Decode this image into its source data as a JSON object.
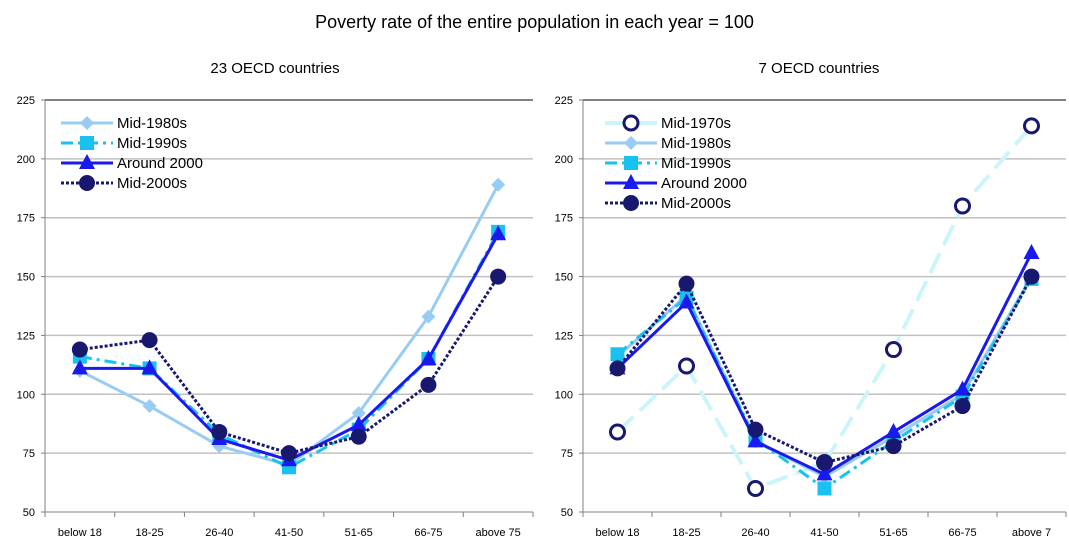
{
  "figure": {
    "title": "Poverty rate of the entire population in each year = 100"
  },
  "colors": {
    "mid1970s": "#ccf5fa",
    "mid1980s": "#99ccf2",
    "mid1990s": "#19c2ee",
    "around2000": "#1a1aee",
    "mid2000s": "#18186e",
    "grid": "#c0c0c0",
    "axis": "#808080"
  },
  "chart_data": [
    {
      "type": "line",
      "title": "23 OECD countries",
      "categories": [
        "below 18",
        "18-25",
        "26-40",
        "41-50",
        "51-65",
        "66-75",
        "above 75"
      ],
      "ylim": [
        50,
        225
      ],
      "yticks": [
        50,
        75,
        100,
        125,
        150,
        175,
        200,
        225
      ],
      "grid": true,
      "legend_position": "top-left",
      "series": [
        {
          "name": "Mid-1980s",
          "key": "mid1980s",
          "marker": "diamond",
          "dash": "solid",
          "values": [
            110,
            95,
            78,
            70,
            92,
            133,
            189
          ]
        },
        {
          "name": "Mid-1990s",
          "key": "mid1990s",
          "marker": "square",
          "dash": "dashdot",
          "values": [
            116,
            111,
            83,
            69,
            85,
            115,
            169
          ]
        },
        {
          "name": "Around 2000",
          "key": "around2000",
          "marker": "triangle",
          "dash": "solid",
          "values": [
            111,
            111,
            81,
            72,
            87,
            115,
            168
          ]
        },
        {
          "name": "Mid-2000s",
          "key": "mid2000s",
          "marker": "circle",
          "dash": "dotted",
          "values": [
            119,
            123,
            84,
            75,
            82,
            104,
            150
          ]
        }
      ]
    },
    {
      "type": "line",
      "title": "7 OECD countries",
      "categories": [
        "below 18",
        "18-25",
        "26-40",
        "41-50",
        "51-65",
        "66-75",
        "above 7"
      ],
      "ylim": [
        50,
        225
      ],
      "yticks": [
        50,
        75,
        100,
        125,
        150,
        175,
        200,
        225
      ],
      "grid": true,
      "legend_position": "top-left",
      "series": [
        {
          "name": "Mid-1970s",
          "key": "mid1970s",
          "marker": "open-circle",
          "dash": "longdash",
          "values": [
            84,
            112,
            60,
            71,
            119,
            180,
            214
          ]
        },
        {
          "name": "Mid-1980s",
          "key": "mid1980s",
          "marker": "diamond",
          "dash": "solid",
          "values": [
            116,
            142,
            80,
            65,
            82,
            100,
            150
          ]
        },
        {
          "name": "Mid-1990s",
          "key": "mid1990s",
          "marker": "square",
          "dash": "dashdot",
          "values": [
            117,
            141,
            81,
            60,
            80,
            99,
            149
          ]
        },
        {
          "name": "Around 2000",
          "key": "around2000",
          "marker": "triangle",
          "dash": "solid",
          "values": [
            111,
            139,
            80,
            66,
            84,
            102,
            160
          ]
        },
        {
          "name": "Mid-2000s",
          "key": "mid2000s",
          "marker": "circle",
          "dash": "dotted",
          "values": [
            111,
            147,
            85,
            71,
            78,
            95,
            150
          ]
        }
      ]
    }
  ]
}
